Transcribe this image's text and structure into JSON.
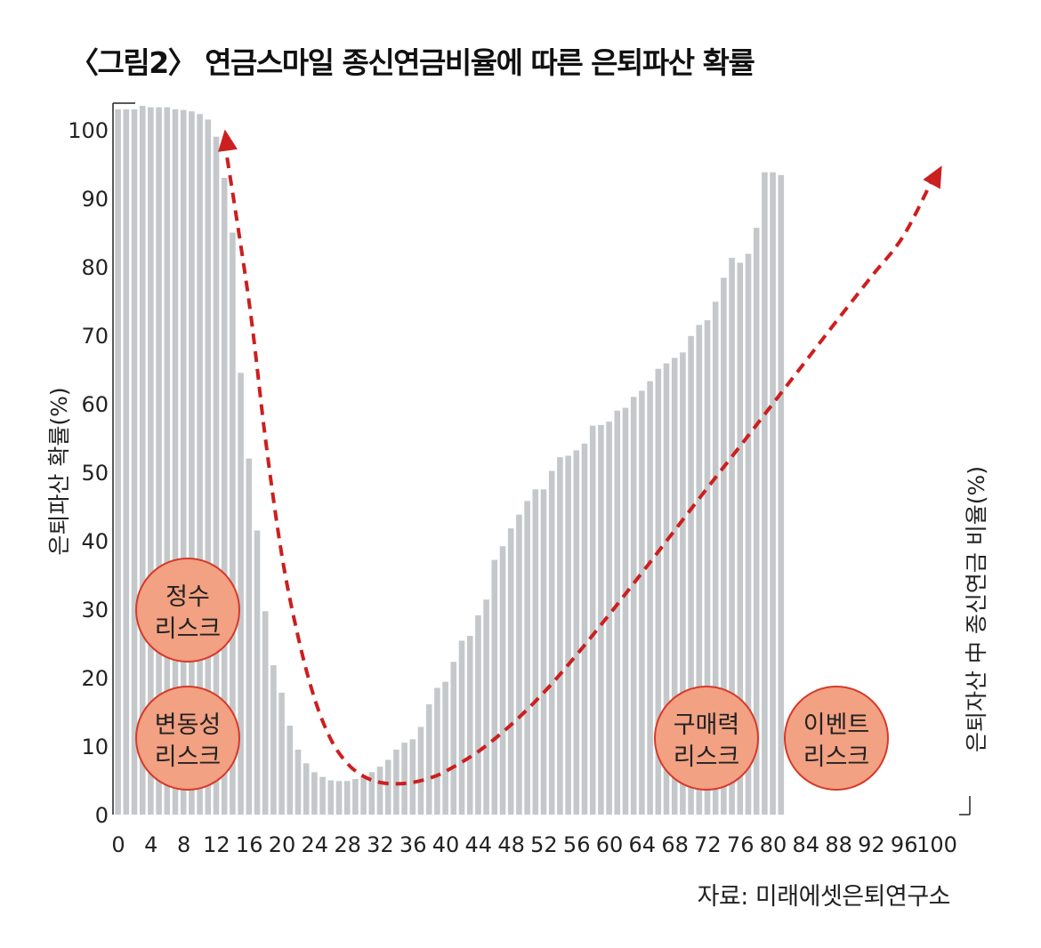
{
  "title": "〈그림2〉 연금스마일 종신연금비율에 따른 은퇴파산 확률",
  "source": "자료: 미래에셋은퇴연구소",
  "colors": {
    "bar": "#c4c8cb",
    "arrow": "#cc1f1f",
    "bubble_fill": "#f2a182",
    "bubble_stroke": "#d63a2a",
    "axis": "#222222"
  },
  "bubbles": [
    {
      "id": "bubble-jeongsu-risk",
      "lines": [
        "정수",
        "리스크"
      ]
    },
    {
      "id": "bubble-volatility-risk",
      "lines": [
        "변동성",
        "리스크"
      ]
    },
    {
      "id": "bubble-purchasing-power-risk",
      "lines": [
        "구매력",
        "리스크"
      ]
    },
    {
      "id": "bubble-event-risk",
      "lines": [
        "이벤트",
        "리스크"
      ]
    }
  ],
  "chart_data": {
    "type": "bar",
    "title": "〈그림2〉 연금스마일 종신연금비율에 따른 은퇴파산 확률",
    "ylabel": "은퇴파산 확률(%)",
    "xlabel": "은퇴자산 中 종신연금 비율(%)",
    "ylim": [
      0,
      100
    ],
    "xlim": [
      0,
      100
    ],
    "yticks": [
      0,
      10,
      20,
      30,
      40,
      50,
      60,
      70,
      80,
      90,
      100
    ],
    "xticks": [
      0,
      4,
      8,
      12,
      16,
      20,
      24,
      28,
      32,
      36,
      40,
      44,
      48,
      52,
      56,
      60,
      64,
      68,
      72,
      76,
      80,
      84,
      88,
      92,
      96,
      100
    ],
    "bar_step": 1,
    "values": [
      103,
      103,
      103,
      103.5,
      103.3,
      103.3,
      103.3,
      103,
      102.9,
      102.7,
      102.3,
      101.5,
      99,
      93,
      85,
      64.5,
      52,
      41.5,
      29.7,
      21.8,
      17.8,
      13,
      9.5,
      7.5,
      6.2,
      5.5,
      5,
      4.9,
      4.9,
      5.2,
      5.6,
      6.2,
      7,
      8,
      9.5,
      10.5,
      11,
      12.8,
      16.1,
      18.5,
      19.4,
      22.3,
      25.4,
      26.1,
      29.1,
      31.4,
      37.2,
      39.2,
      41.8,
      43.8,
      45.8,
      47.5,
      47.5,
      50.2,
      52.2,
      52.4,
      53.2,
      54.2,
      56.8,
      56.9,
      57.4,
      59,
      59.4,
      61,
      61.9,
      63.3,
      65.1,
      65.9,
      66.7,
      67.5,
      69.9,
      71.5,
      72.2,
      74.9,
      78.4,
      81.3,
      80.6,
      81.9,
      85.7,
      93.8,
      93.8,
      93.4
    ],
    "arrow_path": {
      "x": [
        13,
        16,
        18,
        20,
        22,
        24,
        26,
        28,
        30,
        32,
        34,
        36,
        38,
        40,
        44,
        48,
        52,
        56,
        60,
        64,
        68,
        72,
        76,
        80,
        84,
        88,
        92,
        96,
        100
      ],
      "y": [
        98.5,
        75,
        55,
        38,
        26,
        17,
        11,
        7.5,
        5.6,
        4.7,
        4.5,
        4.7,
        5.3,
        6.3,
        9.2,
        13.1,
        17.8,
        23.3,
        29.2,
        35.3,
        41.5,
        47.7,
        53.8,
        60,
        66.2,
        72.4,
        78.5,
        84.6,
        94
      ]
    }
  }
}
